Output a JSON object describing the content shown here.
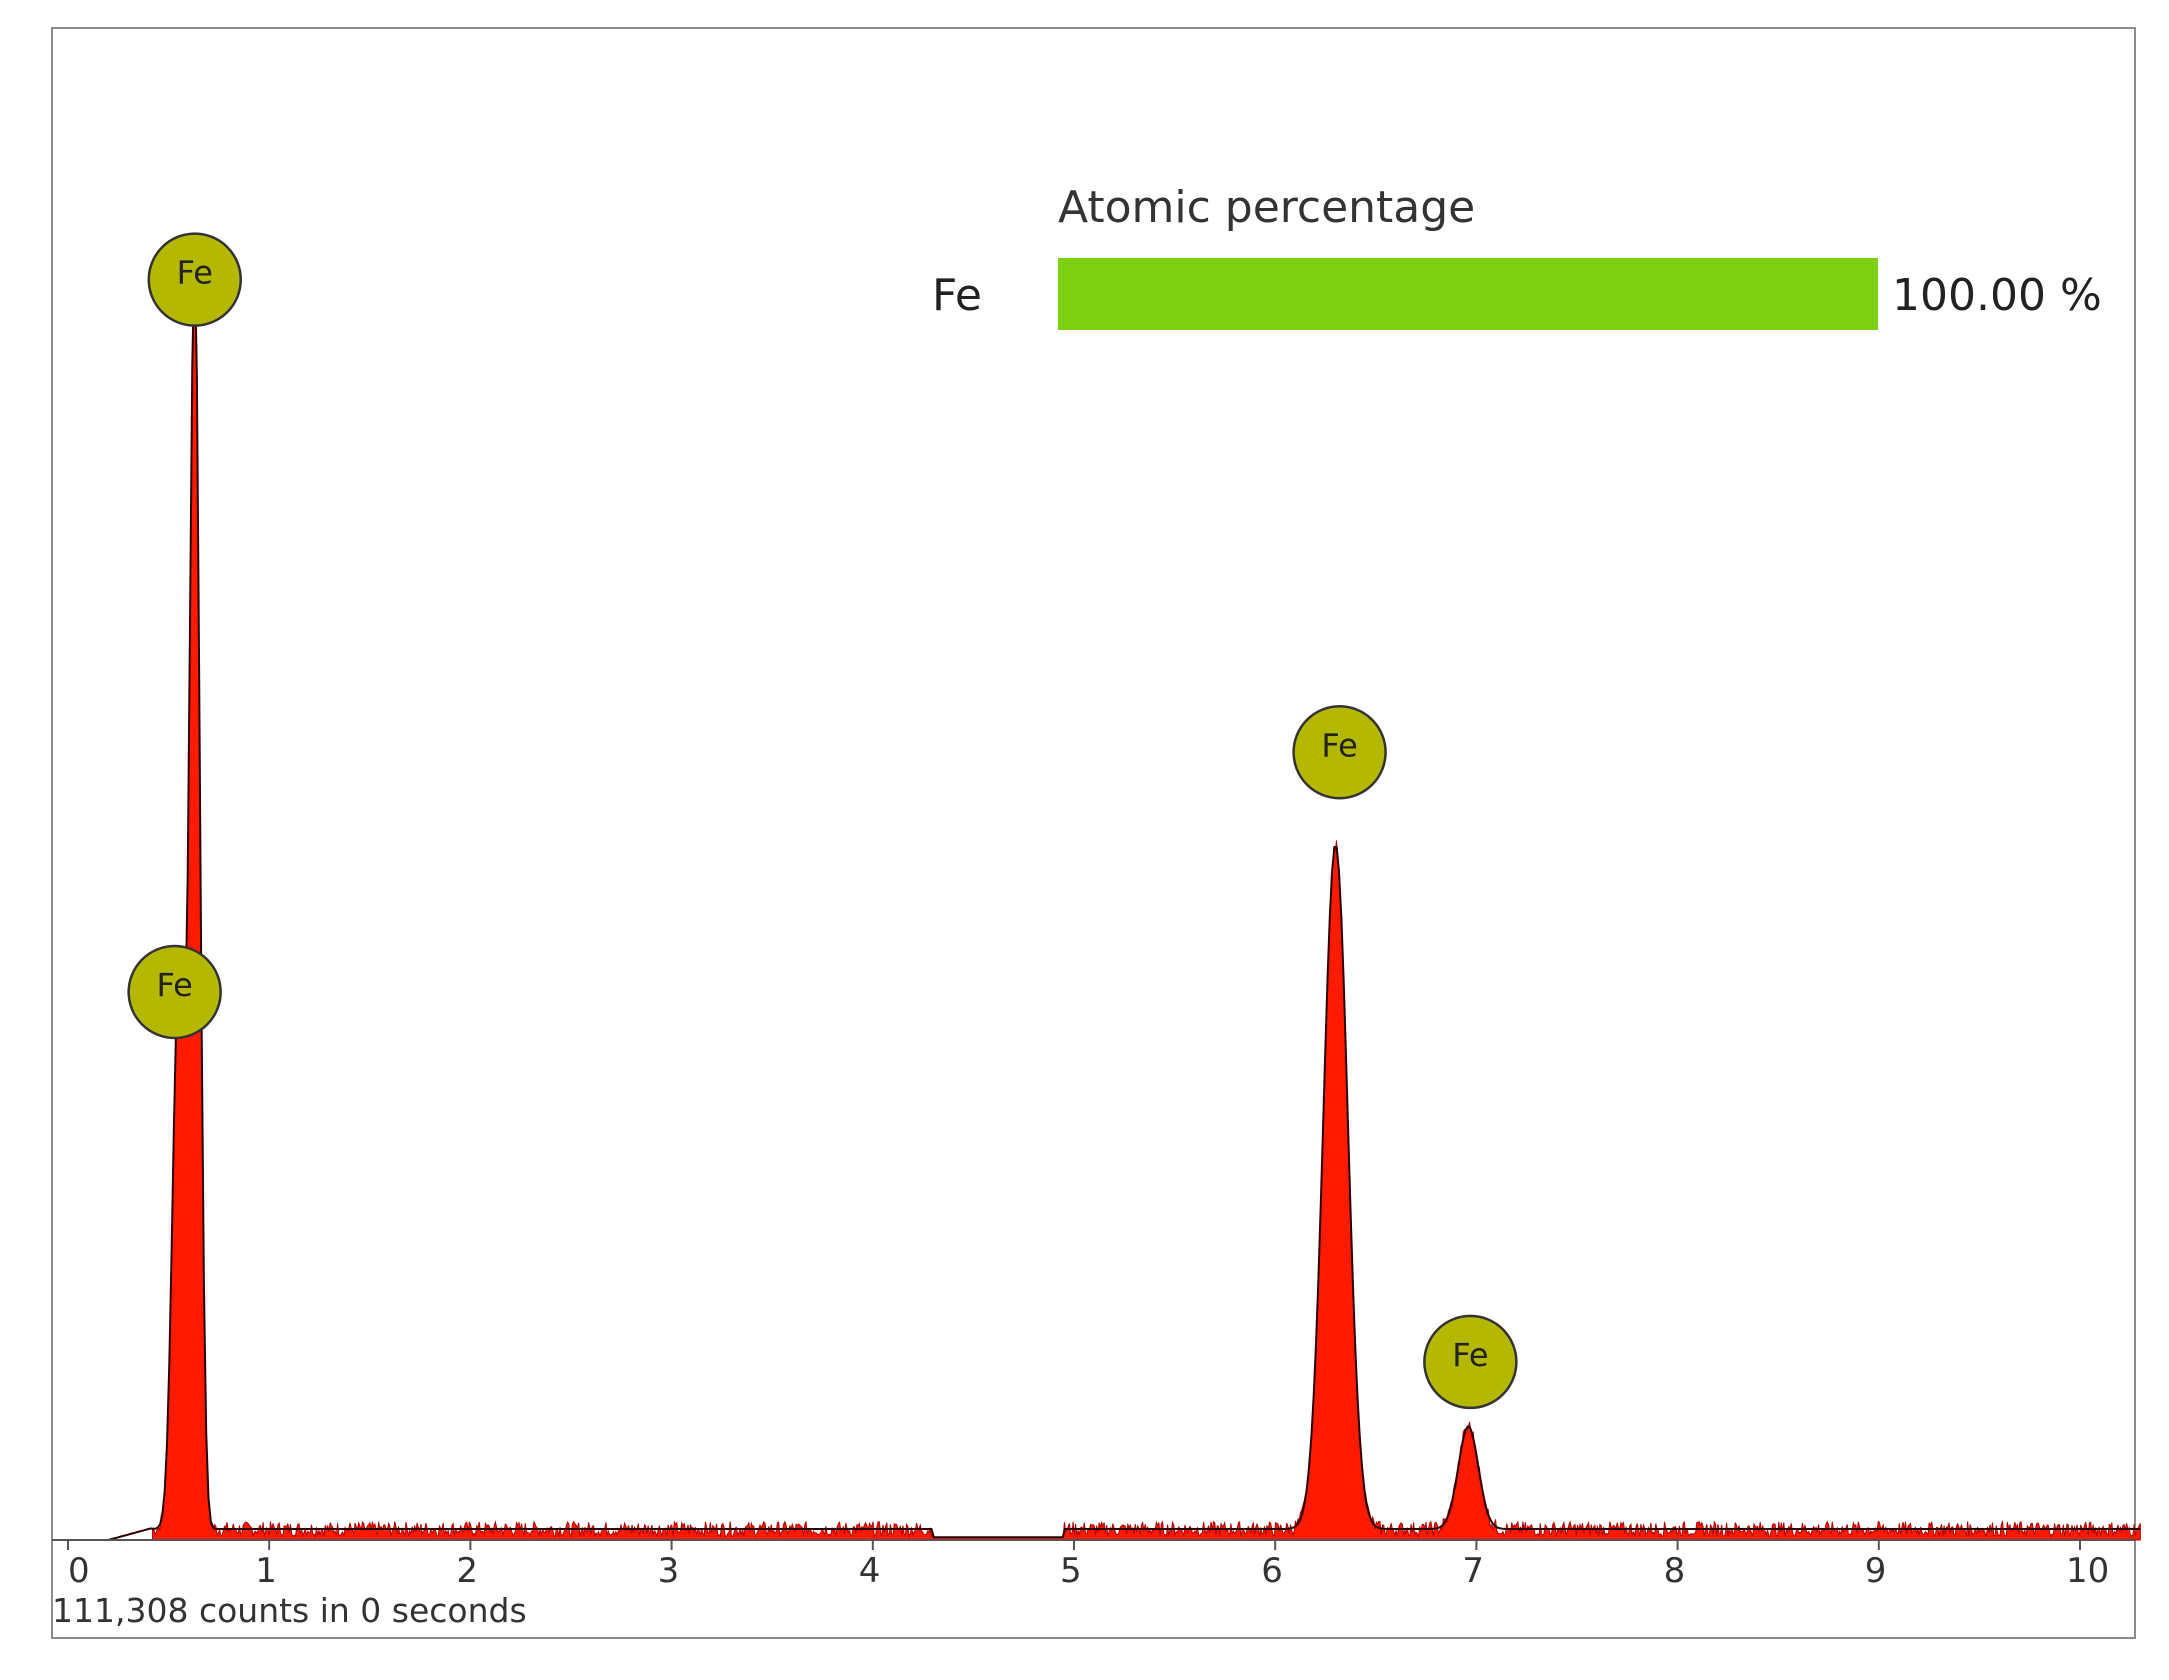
{
  "chart_data": {
    "type": "area",
    "title": "",
    "xlabel": "",
    "ylabel": "",
    "xlim": [
      0,
      10.3
    ],
    "ylim": [
      0,
      100
    ],
    "grid": false,
    "x_ticks": [
      0,
      1,
      2,
      3,
      4,
      5,
      6,
      7,
      8,
      9,
      10
    ],
    "x_tick_labels": [
      "0",
      "1",
      "2",
      "3",
      "4",
      "5",
      "6",
      "7",
      "8",
      "9",
      "10"
    ],
    "footer_text": "111,308 counts in 0 seconds",
    "series": [
      {
        "name": "",
        "color": "#ff1a00",
        "baseline_level": 0.8,
        "peaks": [
          {
            "x": 0.55,
            "height": 40,
            "width": 0.03
          },
          {
            "x": 0.63,
            "height": 92,
            "width": 0.025
          },
          {
            "x": 6.3,
            "height": 50,
            "width": 0.06
          },
          {
            "x": 6.96,
            "height": 7.5,
            "width": 0.05
          }
        ]
      }
    ],
    "peak_markers": [
      {
        "label": "Fe",
        "x": 0.63,
        "y": 92
      },
      {
        "label": "Fe",
        "x": 0.53,
        "y": 40
      },
      {
        "label": "Fe",
        "x": 6.32,
        "y": 57.5
      },
      {
        "label": "Fe",
        "x": 6.97,
        "y": 13
      }
    ],
    "marker_color": "#b5b800",
    "composition": {
      "heading": "Atomic percentage",
      "items": [
        {
          "element": "Fe",
          "fraction": 1.0,
          "value_text": "100.00 %",
          "color": "#7dcf12"
        }
      ]
    }
  }
}
